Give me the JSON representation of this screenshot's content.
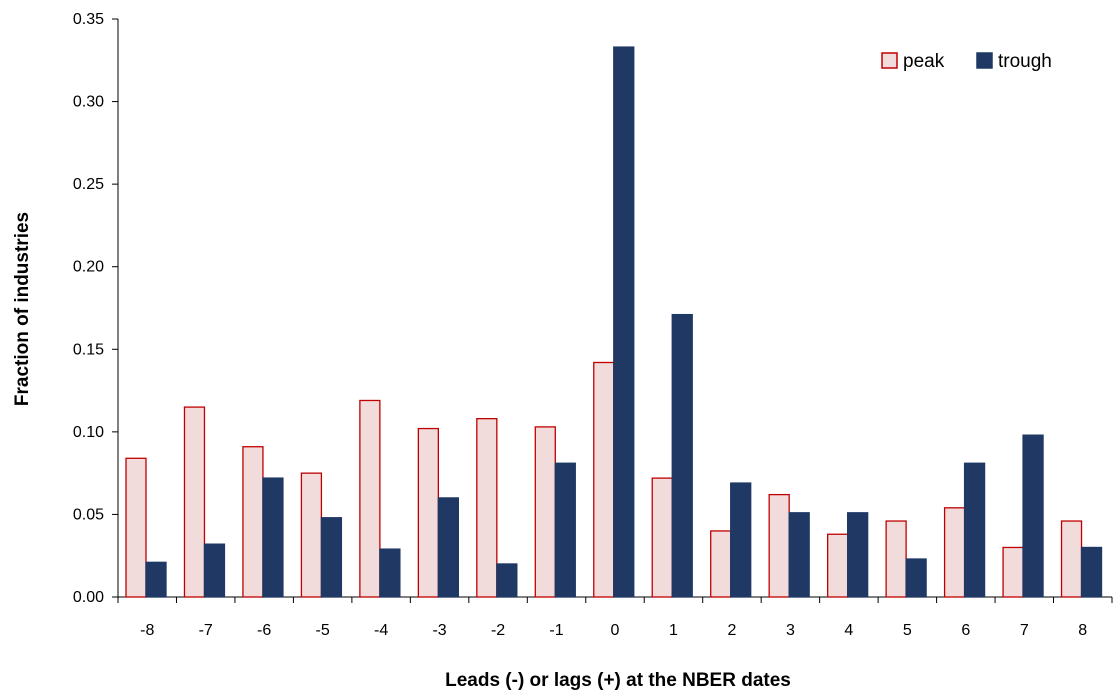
{
  "chart_data": {
    "type": "bar",
    "title": "",
    "xlabel": "Leads (-) or lags (+)  at the NBER dates",
    "ylabel": "Fraction of industries",
    "ylim": [
      0,
      0.35
    ],
    "yticks": [
      "0.00",
      "0.05",
      "0.10",
      "0.15",
      "0.20",
      "0.25",
      "0.30",
      "0.35"
    ],
    "ytick_values": [
      0,
      0.05,
      0.1,
      0.15,
      0.2,
      0.25,
      0.3,
      0.35
    ],
    "categories": [
      "-8",
      "-7",
      "-6",
      "-5",
      "-4",
      "-3",
      "-2",
      "-1",
      "0",
      "1",
      "2",
      "3",
      "4",
      "5",
      "6",
      "7",
      "8"
    ],
    "series": [
      {
        "name": "peak",
        "fill": "#f2dcdb",
        "stroke": "#c00000",
        "values": [
          0.084,
          0.115,
          0.091,
          0.075,
          0.119,
          0.102,
          0.108,
          0.103,
          0.142,
          0.072,
          0.04,
          0.062,
          0.038,
          0.046,
          0.054,
          0.03,
          0.046
        ]
      },
      {
        "name": "trough",
        "fill": "#1f3864",
        "stroke": "#1f3864",
        "values": [
          0.021,
          0.032,
          0.072,
          0.048,
          0.029,
          0.06,
          0.02,
          0.081,
          0.333,
          0.171,
          0.069,
          0.051,
          0.051,
          0.023,
          0.081,
          0.098,
          0.03
        ]
      }
    ],
    "grid": false,
    "legend": "top-right"
  }
}
